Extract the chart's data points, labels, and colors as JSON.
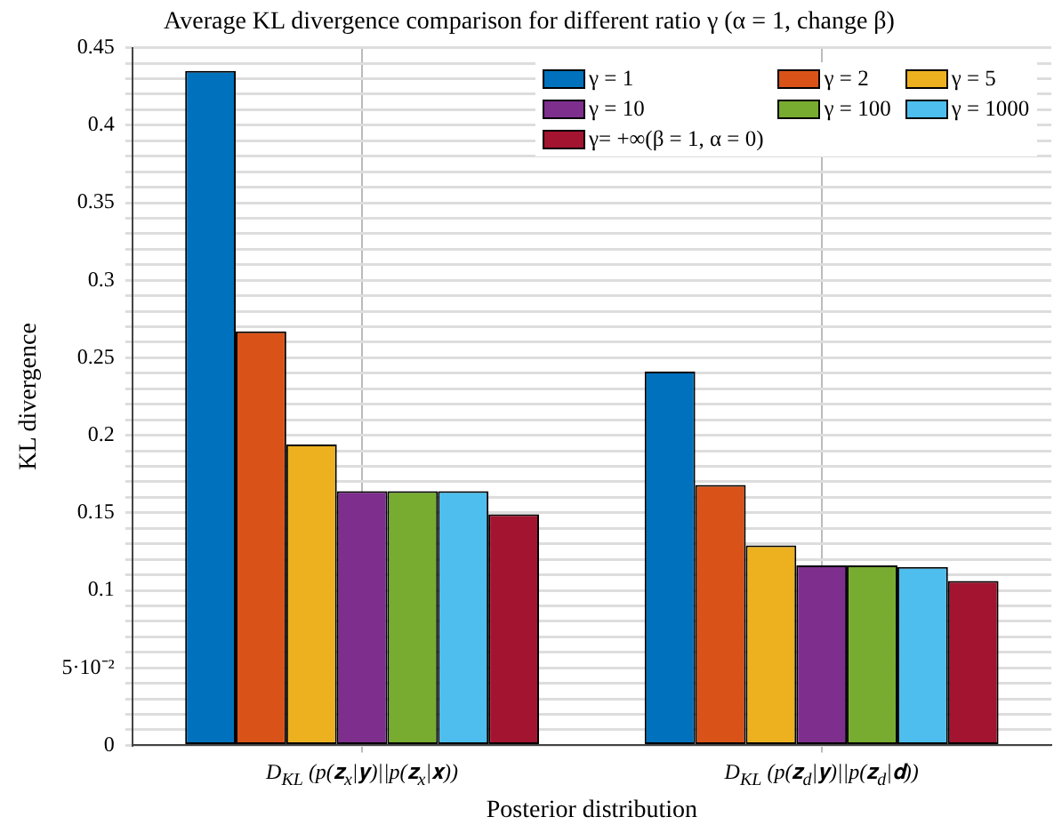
{
  "chart_data": {
    "type": "bar",
    "title": "Average KL divergence comparison for different ratio γ (α = 1, change β)",
    "xlabel": "Posterior distribution",
    "ylabel": "KL divergence",
    "categories": [
      "D$_{KL}$ (p(𝐳$_{x}$|𝐲)||p(𝐳$_{x}$|𝐱))",
      "D$_{KL}$ (p(𝐳$_{d}$|𝐲)||p(𝐳$_{d}$|𝐝))"
    ],
    "series": [
      {
        "name": "γ = 1",
        "color": "#0072bd",
        "values": [
          0.435,
          0.241
        ]
      },
      {
        "name": "γ = 2",
        "color": "#d95319",
        "values": [
          0.267,
          0.168
        ]
      },
      {
        "name": "γ = 5",
        "color": "#edb120",
        "values": [
          0.194,
          0.129
        ]
      },
      {
        "name": "γ = 10",
        "color": "#7e2f8e",
        "values": [
          0.164,
          0.116
        ]
      },
      {
        "name": "γ = 100",
        "color": "#77ac30",
        "values": [
          0.164,
          0.116
        ]
      },
      {
        "name": "γ = 1000",
        "color": "#4dbeee",
        "values": [
          0.164,
          0.115
        ]
      },
      {
        "name": "γ= +∞(β = 1, α = 0)",
        "color": "#a2142f",
        "values": [
          0.149,
          0.106
        ]
      }
    ],
    "ylim": [
      0,
      0.45
    ],
    "yticks": [
      0,
      {
        "value": 0.01,
        "label": null
      },
      {
        "value": 0.02,
        "label": null
      },
      {
        "value": 0.03,
        "label": null
      },
      {
        "value": 0.04,
        "label": null
      },
      {
        "value": 0.05,
        "label": "5·10⁻²"
      },
      {
        "value": 0.06,
        "label": null
      },
      {
        "value": 0.07,
        "label": null
      },
      {
        "value": 0.08,
        "label": null
      },
      {
        "value": 0.09,
        "label": null
      },
      0.1,
      {
        "value": 0.11,
        "label": null
      },
      {
        "value": 0.12,
        "label": null
      },
      {
        "value": 0.13,
        "label": null
      },
      {
        "value": 0.14,
        "label": null
      },
      0.15,
      {
        "value": 0.16,
        "label": null
      },
      {
        "value": 0.17,
        "label": null
      },
      {
        "value": 0.18,
        "label": null
      },
      {
        "value": 0.19,
        "label": null
      },
      0.2,
      {
        "value": 0.21,
        "label": null
      },
      {
        "value": 0.22,
        "label": null
      },
      {
        "value": 0.23,
        "label": null
      },
      {
        "value": 0.24,
        "label": null
      },
      0.25,
      {
        "value": 0.26,
        "label": null
      },
      {
        "value": 0.27,
        "label": null
      },
      {
        "value": 0.28,
        "label": null
      },
      {
        "value": 0.29,
        "label": null
      },
      0.3,
      {
        "value": 0.31,
        "label": null
      },
      {
        "value": 0.32,
        "label": null
      },
      {
        "value": 0.33,
        "label": null
      },
      {
        "value": 0.34,
        "label": null
      },
      0.35,
      {
        "value": 0.36,
        "label": null
      },
      {
        "value": 0.37,
        "label": null
      },
      {
        "value": 0.38,
        "label": null
      },
      {
        "value": 0.39,
        "label": null
      },
      0.4,
      {
        "value": 0.41,
        "label": null
      },
      {
        "value": 0.42,
        "label": null
      },
      {
        "value": 0.43,
        "label": null
      },
      {
        "value": 0.44,
        "label": null
      },
      0.45
    ],
    "grid": true,
    "legend": "top right"
  }
}
